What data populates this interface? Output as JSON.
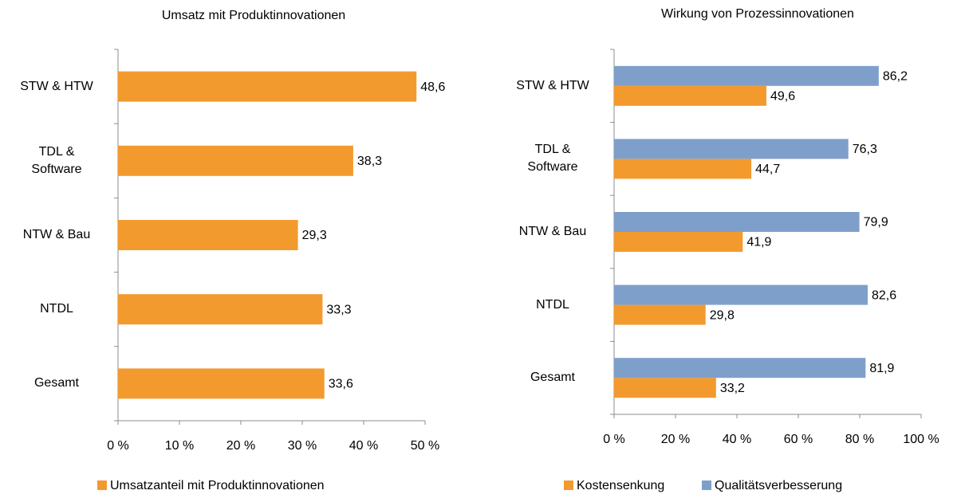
{
  "chart_data": [
    {
      "type": "bar",
      "orientation": "horizontal",
      "title": "Umsatz mit Produktinnovationen",
      "categories": [
        "STW & HTW",
        "TDL & Software",
        "NTW & Bau",
        "NTDL",
        "Gesamt"
      ],
      "series": [
        {
          "name": "Umsatzanteil mit Produktinnovationen",
          "color": "#f39a2e",
          "values": [
            48.6,
            38.3,
            29.3,
            33.3,
            33.6
          ],
          "value_labels": [
            "48,6",
            "38,3",
            "29,3",
            "33,3",
            "33,6"
          ]
        }
      ],
      "xlim": [
        0,
        50
      ],
      "xticks": [
        {
          "value": 0,
          "label": "0 %"
        },
        {
          "value": 10,
          "label": "10 %"
        },
        {
          "value": 20,
          "label": "20 %"
        },
        {
          "value": 30,
          "label": "30 %"
        },
        {
          "value": 40,
          "label": "40 %"
        },
        {
          "value": 50,
          "label": "50 %"
        }
      ],
      "legend": "bottom"
    },
    {
      "type": "bar",
      "orientation": "horizontal",
      "title": "Wirkung von Prozessinnovationen",
      "categories": [
        "STW & HTW",
        "TDL & Software",
        "NTW & Bau",
        "NTDL",
        "Gesamt"
      ],
      "series": [
        {
          "name": "Kostensenkung",
          "color": "#f39a2e",
          "values": [
            49.6,
            44.7,
            41.9,
            29.8,
            33.2
          ],
          "value_labels": [
            "49,6",
            "44,7",
            "41,9",
            "29,8",
            "33,2"
          ]
        },
        {
          "name": "Qualitätsverbesserung",
          "color": "#7f9fcb",
          "values": [
            86.2,
            76.3,
            79.9,
            82.6,
            81.9
          ],
          "value_labels": [
            "86,2",
            "76,3",
            "79,9",
            "82,6",
            "81,9"
          ]
        }
      ],
      "xlim": [
        0,
        100
      ],
      "xticks": [
        {
          "value": 0,
          "label": "0 %"
        },
        {
          "value": 20,
          "label": "20 %"
        },
        {
          "value": 40,
          "label": "40 %"
        },
        {
          "value": 60,
          "label": "60 %"
        },
        {
          "value": 80,
          "label": "80 %"
        },
        {
          "value": 100,
          "label": "100 %"
        }
      ],
      "legend": "bottom"
    }
  ]
}
